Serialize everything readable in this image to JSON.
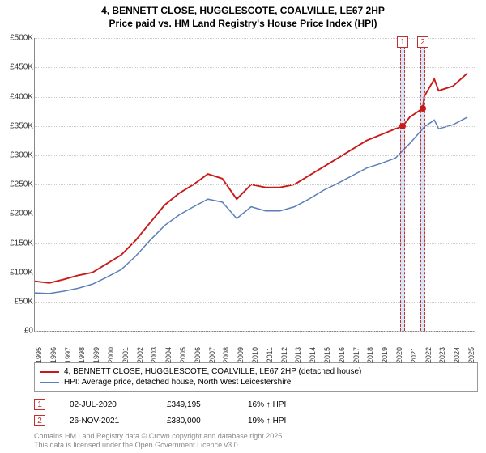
{
  "title_line1": "4, BENNETT CLOSE, HUGGLESCOTE, COALVILLE, LE67 2HP",
  "title_line2": "Price paid vs. HM Land Registry's House Price Index (HPI)",
  "chart": {
    "type": "line",
    "background_color": "#ffffff",
    "grid_color": "#cccccc",
    "axis_color": "#888888",
    "xlim": [
      1995,
      2025.5
    ],
    "ylim": [
      0,
      500000
    ],
    "ytick_step": 50000,
    "ytick_labels": [
      "£0",
      "£50K",
      "£100K",
      "£150K",
      "£200K",
      "£250K",
      "£300K",
      "£350K",
      "£400K",
      "£450K",
      "£500K"
    ],
    "xtick_years": [
      1995,
      1996,
      1997,
      1998,
      1999,
      2000,
      2001,
      2002,
      2003,
      2004,
      2005,
      2006,
      2007,
      2008,
      2009,
      2010,
      2011,
      2012,
      2013,
      2014,
      2015,
      2016,
      2017,
      2018,
      2019,
      2020,
      2021,
      2022,
      2023,
      2024,
      2025
    ],
    "label_fontsize": 10,
    "series": [
      {
        "id": "price_paid",
        "label": "4, BENNETT CLOSE, HUGGLESCOTE, COALVILLE, LE67 2HP (detached house)",
        "color": "#c91a1a",
        "line_width": 1.9,
        "data": [
          [
            1995,
            85000
          ],
          [
            1996,
            82000
          ],
          [
            1997,
            88000
          ],
          [
            1998,
            95000
          ],
          [
            1999,
            100000
          ],
          [
            2000,
            115000
          ],
          [
            2001,
            130000
          ],
          [
            2002,
            155000
          ],
          [
            2003,
            185000
          ],
          [
            2004,
            215000
          ],
          [
            2005,
            235000
          ],
          [
            2006,
            250000
          ],
          [
            2007,
            268000
          ],
          [
            2008,
            260000
          ],
          [
            2009,
            225000
          ],
          [
            2010,
            250000
          ],
          [
            2011,
            245000
          ],
          [
            2012,
            245000
          ],
          [
            2013,
            250000
          ],
          [
            2014,
            265000
          ],
          [
            2015,
            280000
          ],
          [
            2016,
            295000
          ],
          [
            2017,
            310000
          ],
          [
            2018,
            325000
          ],
          [
            2019,
            335000
          ],
          [
            2020,
            345000
          ],
          [
            2020.5,
            349195
          ],
          [
            2021,
            365000
          ],
          [
            2021.9,
            380000
          ],
          [
            2022,
            400000
          ],
          [
            2022.7,
            430000
          ],
          [
            2023,
            410000
          ],
          [
            2024,
            418000
          ],
          [
            2025,
            440000
          ]
        ]
      },
      {
        "id": "hpi",
        "label": "HPI: Average price, detached house, North West Leicestershire",
        "color": "#5b7fb8",
        "line_width": 1.5,
        "data": [
          [
            1995,
            65000
          ],
          [
            1996,
            64000
          ],
          [
            1997,
            68000
          ],
          [
            1998,
            73000
          ],
          [
            1999,
            80000
          ],
          [
            2000,
            92000
          ],
          [
            2001,
            105000
          ],
          [
            2002,
            128000
          ],
          [
            2003,
            155000
          ],
          [
            2004,
            180000
          ],
          [
            2005,
            198000
          ],
          [
            2006,
            212000
          ],
          [
            2007,
            225000
          ],
          [
            2008,
            220000
          ],
          [
            2009,
            192000
          ],
          [
            2010,
            212000
          ],
          [
            2011,
            205000
          ],
          [
            2012,
            205000
          ],
          [
            2013,
            212000
          ],
          [
            2014,
            225000
          ],
          [
            2015,
            240000
          ],
          [
            2016,
            252000
          ],
          [
            2017,
            265000
          ],
          [
            2018,
            278000
          ],
          [
            2019,
            286000
          ],
          [
            2020,
            295000
          ],
          [
            2021,
            320000
          ],
          [
            2022,
            348000
          ],
          [
            2022.7,
            360000
          ],
          [
            2023,
            345000
          ],
          [
            2024,
            352000
          ],
          [
            2025,
            365000
          ]
        ]
      }
    ],
    "markers": [
      {
        "n": "1",
        "x": 2020.5,
        "band_width": 0.3
      },
      {
        "n": "2",
        "x": 2021.9,
        "band_width": 0.3
      }
    ],
    "sale_points": [
      {
        "x": 2020.5,
        "y": 349195,
        "color": "#c91a1a"
      },
      {
        "x": 2021.9,
        "y": 380000,
        "color": "#c91a1a"
      }
    ]
  },
  "legend": {
    "series1_label": "4, BENNETT CLOSE, HUGGLESCOTE, COALVILLE, LE67 2HP (detached house)",
    "series2_label": "HPI: Average price, detached house, North West Leicestershire",
    "series1_color": "#c91a1a",
    "series2_color": "#5b7fb8"
  },
  "sales": [
    {
      "n": "1",
      "date": "02-JUL-2020",
      "price": "£349,195",
      "delta": "16% ↑ HPI"
    },
    {
      "n": "2",
      "date": "26-NOV-2021",
      "price": "£380,000",
      "delta": "19% ↑ HPI"
    }
  ],
  "copyright_line1": "Contains HM Land Registry data © Crown copyright and database right 2025.",
  "copyright_line2": "This data is licensed under the Open Government Licence v3.0."
}
